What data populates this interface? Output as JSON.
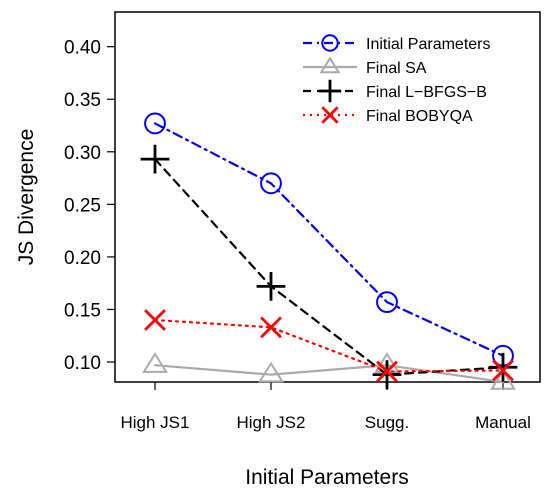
{
  "chart_data": {
    "type": "line",
    "title": "",
    "xlabel": "Initial Parameters",
    "ylabel": "JS Divergence",
    "categories": [
      "High JS1",
      "High JS2",
      "Sugg.",
      "Manual"
    ],
    "ylim": [
      0.081,
      0.433
    ],
    "yticks": [
      "0.10",
      "0.15",
      "0.20",
      "0.25",
      "0.30",
      "0.35",
      "0.40"
    ],
    "legend_position": "top-right",
    "grid": false,
    "series": [
      {
        "name": "Initial Parameters",
        "values": [
          0.327,
          0.27,
          0.157,
          0.106
        ],
        "color": "#0000ee",
        "dash": "dashdot",
        "marker": "circle"
      },
      {
        "name": "Final SA",
        "values": [
          0.097,
          0.088,
          0.097,
          0.081
        ],
        "color": "#aaaaaa",
        "dash": "solid",
        "marker": "triangle"
      },
      {
        "name": "Final L−BFGS−B",
        "values": [
          0.293,
          0.172,
          0.088,
          0.095
        ],
        "color": "#000000",
        "dash": "dashed",
        "marker": "plus"
      },
      {
        "name": "Final BOBYQA",
        "values": [
          0.14,
          0.133,
          0.091,
          0.092
        ],
        "color": "#ff0000",
        "dash": "dotted",
        "marker": "cross"
      }
    ]
  }
}
